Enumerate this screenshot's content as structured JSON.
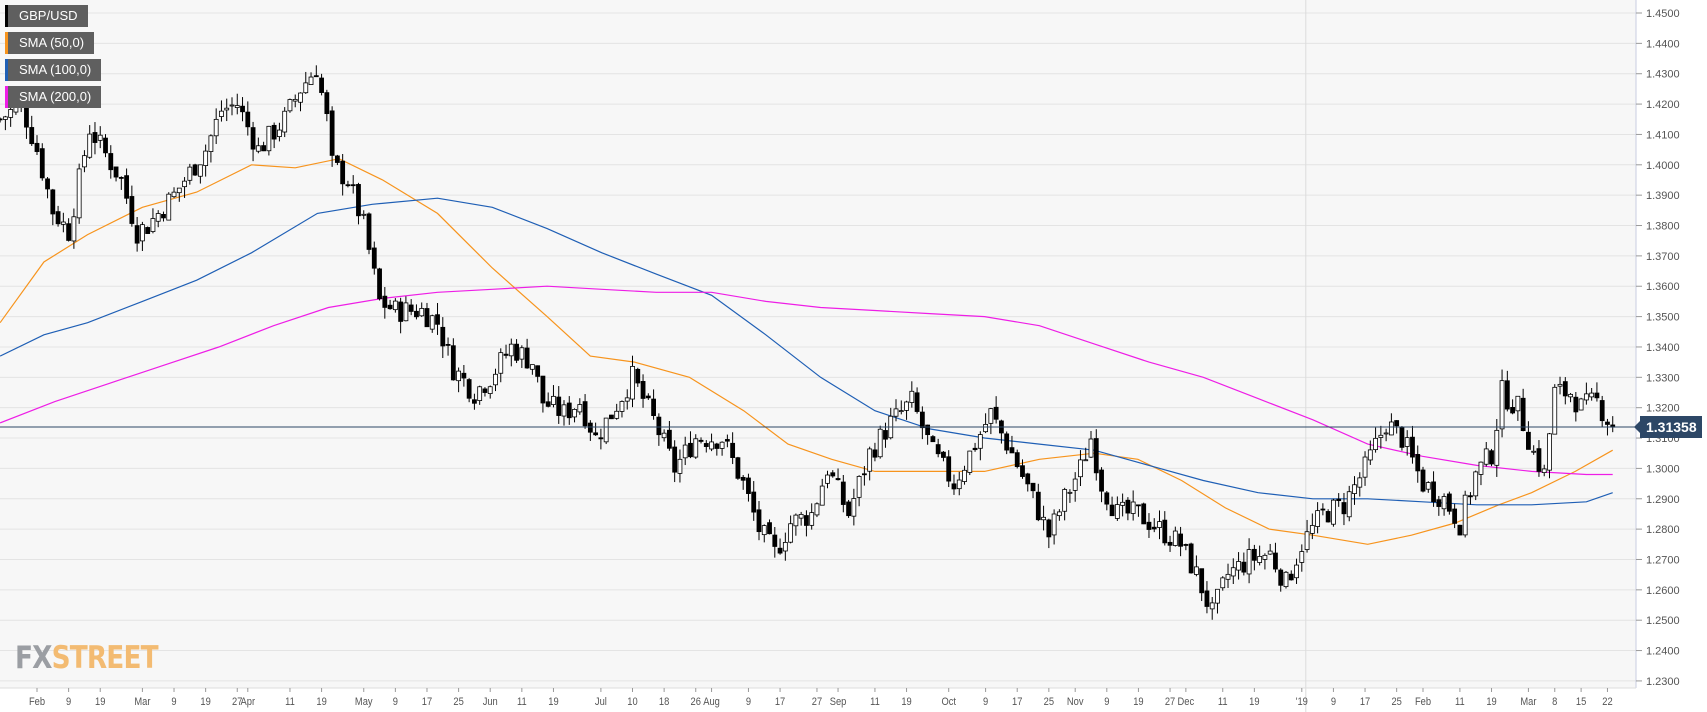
{
  "chart_data": {
    "type": "candlestick",
    "symbol": "GBP/USD",
    "last_price": "1.31358",
    "ylim": [
      1.23,
      1.45
    ],
    "y_ticks": [
      "1.2300",
      "1.2400",
      "1.2500",
      "1.2600",
      "1.2700",
      "1.2800",
      "1.2900",
      "1.3000",
      "1.3100",
      "1.3200",
      "1.3300",
      "1.3400",
      "1.3500",
      "1.3600",
      "1.3700",
      "1.3800",
      "1.3900",
      "1.4000",
      "1.4100",
      "1.4200",
      "1.4300",
      "1.4400",
      "1.4500"
    ],
    "x_ticks": [
      {
        "label": "Feb",
        "day": 0
      },
      {
        "label": "9",
        "day": 6
      },
      {
        "label": "19",
        "day": 12
      },
      {
        "label": "Mar",
        "day": 20
      },
      {
        "label": "9",
        "day": 26
      },
      {
        "label": "19",
        "day": 32
      },
      {
        "label": "27",
        "day": 38
      },
      {
        "label": "Apr",
        "day": 40
      },
      {
        "label": "11",
        "day": 48
      },
      {
        "label": "19",
        "day": 54
      },
      {
        "label": "May",
        "day": 62
      },
      {
        "label": "9",
        "day": 68
      },
      {
        "label": "17",
        "day": 74
      },
      {
        "label": "25",
        "day": 80
      },
      {
        "label": "Jun",
        "day": 86
      },
      {
        "label": "11",
        "day": 92
      },
      {
        "label": "19",
        "day": 98
      },
      {
        "label": "Jul",
        "day": 107
      },
      {
        "label": "10",
        "day": 113
      },
      {
        "label": "18",
        "day": 119
      },
      {
        "label": "26",
        "day": 125
      },
      {
        "label": "Aug",
        "day": 128
      },
      {
        "label": "9",
        "day": 135
      },
      {
        "label": "17",
        "day": 141
      },
      {
        "label": "27",
        "day": 148
      },
      {
        "label": "Sep",
        "day": 152
      },
      {
        "label": "11",
        "day": 159
      },
      {
        "label": "19",
        "day": 165
      },
      {
        "label": "Oct",
        "day": 173
      },
      {
        "label": "9",
        "day": 180
      },
      {
        "label": "17",
        "day": 186
      },
      {
        "label": "25",
        "day": 192
      },
      {
        "label": "Nov",
        "day": 197
      },
      {
        "label": "9",
        "day": 203
      },
      {
        "label": "19",
        "day": 209
      },
      {
        "label": "27",
        "day": 215
      },
      {
        "label": "Dec",
        "day": 218
      },
      {
        "label": "11",
        "day": 225
      },
      {
        "label": "19",
        "day": 231
      },
      {
        "label": "'19",
        "day": 240
      },
      {
        "label": "9",
        "day": 246
      },
      {
        "label": "17",
        "day": 252
      },
      {
        "label": "25",
        "day": 258
      },
      {
        "label": "Feb",
        "day": 263
      },
      {
        "label": "11",
        "day": 270
      },
      {
        "label": "19",
        "day": 276
      },
      {
        "label": "Mar",
        "day": 283
      },
      {
        "label": "8",
        "day": 288
      },
      {
        "label": "15",
        "day": 293
      },
      {
        "label": "22",
        "day": 298
      }
    ],
    "year_divider_day": 240,
    "close_waypoints": [
      [
        -7,
        1.415
      ],
      [
        -3,
        1.42
      ],
      [
        0,
        1.405
      ],
      [
        3,
        1.385
      ],
      [
        6,
        1.378
      ],
      [
        10,
        1.412
      ],
      [
        16,
        1.395
      ],
      [
        19,
        1.378
      ],
      [
        21,
        1.38
      ],
      [
        26,
        1.39
      ],
      [
        32,
        1.405
      ],
      [
        35,
        1.418
      ],
      [
        38,
        1.42
      ],
      [
        42,
        1.405
      ],
      [
        47,
        1.415
      ],
      [
        50,
        1.425
      ],
      [
        53,
        1.432
      ],
      [
        55,
        1.415
      ],
      [
        56,
        1.4
      ],
      [
        59,
        1.395
      ],
      [
        62,
        1.38
      ],
      [
        65,
        1.355
      ],
      [
        68,
        1.352
      ],
      [
        73,
        1.352
      ],
      [
        76,
        1.348
      ],
      [
        79,
        1.333
      ],
      [
        83,
        1.325
      ],
      [
        86,
        1.33
      ],
      [
        90,
        1.34
      ],
      [
        94,
        1.335
      ],
      [
        96,
        1.322
      ],
      [
        100,
        1.318
      ],
      [
        103,
        1.322
      ],
      [
        106,
        1.31
      ],
      [
        109,
        1.318
      ],
      [
        113,
        1.33
      ],
      [
        117,
        1.316
      ],
      [
        121,
        1.3
      ],
      [
        125,
        1.31
      ],
      [
        130,
        1.31
      ],
      [
        134,
        1.295
      ],
      [
        137,
        1.28
      ],
      [
        140,
        1.272
      ],
      [
        143,
        1.282
      ],
      [
        147,
        1.285
      ],
      [
        150,
        1.3
      ],
      [
        154,
        1.285
      ],
      [
        158,
        1.305
      ],
      [
        162,
        1.315
      ],
      [
        166,
        1.322
      ],
      [
        170,
        1.305
      ],
      [
        174,
        1.295
      ],
      [
        178,
        1.308
      ],
      [
        181,
        1.318
      ],
      [
        185,
        1.305
      ],
      [
        189,
        1.29
      ],
      [
        192,
        1.278
      ],
      [
        195,
        1.29
      ],
      [
        198,
        1.3
      ],
      [
        200,
        1.31
      ],
      [
        202,
        1.295
      ],
      [
        205,
        1.285
      ],
      [
        209,
        1.285
      ],
      [
        213,
        1.28
      ],
      [
        217,
        1.275
      ],
      [
        220,
        1.265
      ],
      [
        223,
        1.252
      ],
      [
        226,
        1.265
      ],
      [
        230,
        1.27
      ],
      [
        234,
        1.272
      ],
      [
        237,
        1.262
      ],
      [
        240,
        1.275
      ],
      [
        244,
        1.285
      ],
      [
        248,
        1.288
      ],
      [
        252,
        1.3
      ],
      [
        256,
        1.315
      ],
      [
        259,
        1.31
      ],
      [
        263,
        1.295
      ],
      [
        267,
        1.29
      ],
      [
        270,
        1.282
      ],
      [
        273,
        1.298
      ],
      [
        276,
        1.305
      ],
      [
        278,
        1.325
      ],
      [
        281,
        1.32
      ],
      [
        284,
        1.305
      ],
      [
        286,
        1.298
      ],
      [
        288,
        1.325
      ],
      [
        291,
        1.325
      ],
      [
        293,
        1.32
      ],
      [
        296,
        1.322
      ],
      [
        299,
        1.31358
      ]
    ],
    "series": [
      {
        "name": "SMA (50,0)",
        "color": "#f7941d",
        "points": [
          [
            -7,
            1.348
          ],
          [
            1.3,
            1.368
          ],
          [
            9.6,
            1.377
          ],
          [
            20,
            1.386
          ],
          [
            30.3,
            1.391
          ],
          [
            40.7,
            1.4
          ],
          [
            49,
            1.399
          ],
          [
            57.3,
            1.402
          ],
          [
            65.6,
            1.395
          ],
          [
            76,
            1.384
          ],
          [
            86.4,
            1.366
          ],
          [
            96.8,
            1.35
          ],
          [
            105,
            1.337
          ],
          [
            113.4,
            1.335
          ],
          [
            123.8,
            1.33
          ],
          [
            134.1,
            1.319
          ],
          [
            142.5,
            1.308
          ],
          [
            150.8,
            1.303
          ],
          [
            159,
            1.299
          ],
          [
            169.4,
            1.299
          ],
          [
            179.8,
            1.299
          ],
          [
            190.2,
            1.303
          ],
          [
            200.6,
            1.305
          ],
          [
            208.9,
            1.303
          ],
          [
            217.2,
            1.296
          ],
          [
            225.5,
            1.287
          ],
          [
            233.8,
            1.28
          ],
          [
            242.1,
            1.278
          ],
          [
            252.5,
            1.275
          ],
          [
            260.8,
            1.278
          ],
          [
            269.1,
            1.282
          ],
          [
            277.4,
            1.288
          ],
          [
            283.6,
            1.292
          ],
          [
            291.9,
            1.299
          ],
          [
            299,
            1.306
          ]
        ]
      },
      {
        "name": "SMA (100,0)",
        "color": "#1f5fb5",
        "points": [
          [
            -7,
            1.337
          ],
          [
            1.3,
            1.344
          ],
          [
            9.6,
            1.348
          ],
          [
            20,
            1.355
          ],
          [
            30.3,
            1.362
          ],
          [
            40.7,
            1.371
          ],
          [
            53.2,
            1.384
          ],
          [
            63.6,
            1.387
          ],
          [
            76,
            1.389
          ],
          [
            86.4,
            1.386
          ],
          [
            96.8,
            1.379
          ],
          [
            107.2,
            1.371
          ],
          [
            117.5,
            1.364
          ],
          [
            128,
            1.357
          ],
          [
            138.3,
            1.344
          ],
          [
            148.7,
            1.33
          ],
          [
            159,
            1.319
          ],
          [
            169.4,
            1.313
          ],
          [
            179.8,
            1.31
          ],
          [
            190.2,
            1.308
          ],
          [
            200.6,
            1.306
          ],
          [
            211,
            1.301
          ],
          [
            221.3,
            1.296
          ],
          [
            231.7,
            1.292
          ],
          [
            242.1,
            1.29
          ],
          [
            252.5,
            1.29
          ],
          [
            262.9,
            1.289
          ],
          [
            273.2,
            1.288
          ],
          [
            283.6,
            1.288
          ],
          [
            294,
            1.289
          ],
          [
            299,
            1.292
          ]
        ]
      },
      {
        "name": "SMA (200,0)",
        "color": "#ee1ee6",
        "points": [
          [
            -7,
            1.315
          ],
          [
            3.4,
            1.322
          ],
          [
            13.7,
            1.328
          ],
          [
            24.1,
            1.334
          ],
          [
            34.5,
            1.34
          ],
          [
            44.9,
            1.347
          ],
          [
            55.3,
            1.353
          ],
          [
            65.6,
            1.356
          ],
          [
            76,
            1.358
          ],
          [
            86.4,
            1.359
          ],
          [
            96.8,
            1.36
          ],
          [
            107.2,
            1.359
          ],
          [
            117.5,
            1.358
          ],
          [
            128,
            1.358
          ],
          [
            138.3,
            1.355
          ],
          [
            148.7,
            1.353
          ],
          [
            159,
            1.352
          ],
          [
            169.4,
            1.351
          ],
          [
            179.8,
            1.35
          ],
          [
            190.2,
            1.347
          ],
          [
            200.6,
            1.341
          ],
          [
            211,
            1.335
          ],
          [
            221.3,
            1.33
          ],
          [
            231.7,
            1.323
          ],
          [
            242.1,
            1.316
          ],
          [
            252.5,
            1.308
          ],
          [
            262.9,
            1.304
          ],
          [
            273.2,
            1.301
          ],
          [
            283.6,
            1.299
          ],
          [
            294,
            1.298
          ],
          [
            299,
            1.298
          ]
        ]
      }
    ],
    "legend": [
      "GBP/USD",
      "SMA (50,0)",
      "SMA (100,0)",
      "SMA (200,0)"
    ],
    "legend_colors": [
      "#000000",
      "#f7941d",
      "#1f5fb5",
      "#ee1ee6"
    ],
    "legend_placement": "top-left",
    "grid": true
  },
  "branding": {
    "logo_fx": "FX",
    "logo_street": "STREET"
  }
}
